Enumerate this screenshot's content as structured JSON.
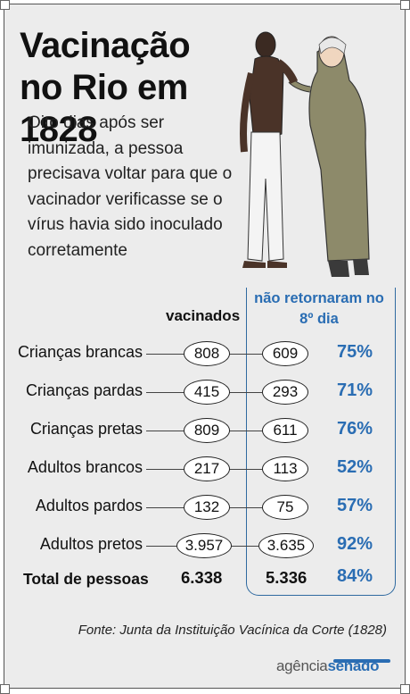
{
  "title": "Vacinação no Rio em 1828",
  "subtitle": "Oito dias após ser imunizada, a pessoa precisava voltar para que o vacinador verificasse se o vírus havia sido inoculado corretamente",
  "columns": {
    "vaccinated": "vacinados",
    "not_returned": "não retornaram no 8º dia"
  },
  "chart_data": {
    "type": "table",
    "categories": [
      "Crianças brancas",
      "Crianças pardas",
      "Crianças pretas",
      "Adultos brancos",
      "Adultos pardos",
      "Adultos pretos"
    ],
    "series": [
      {
        "name": "vacinados",
        "values": [
          "808",
          "415",
          "809",
          "217",
          "132",
          "3.957"
        ]
      },
      {
        "name": "não retornaram no 8º dia",
        "values": [
          "609",
          "293",
          "611",
          "113",
          "75",
          "3.635"
        ]
      },
      {
        "values": [
          "75%",
          "71%",
          "76%",
          "52%",
          "57%",
          "92%"
        ]
      }
    ],
    "total": {
      "label": "Total de pessoas",
      "vaccinated": "6.338",
      "not_returned": "5.336",
      "percent": "84%"
    }
  },
  "source": "Fonte: Junta da Instituição Vacínica da Corte (1828)",
  "logo": {
    "prefix": "agência",
    "suffix": "senado"
  },
  "colors": {
    "accent": "#2a6db3",
    "background": "#ececec"
  }
}
